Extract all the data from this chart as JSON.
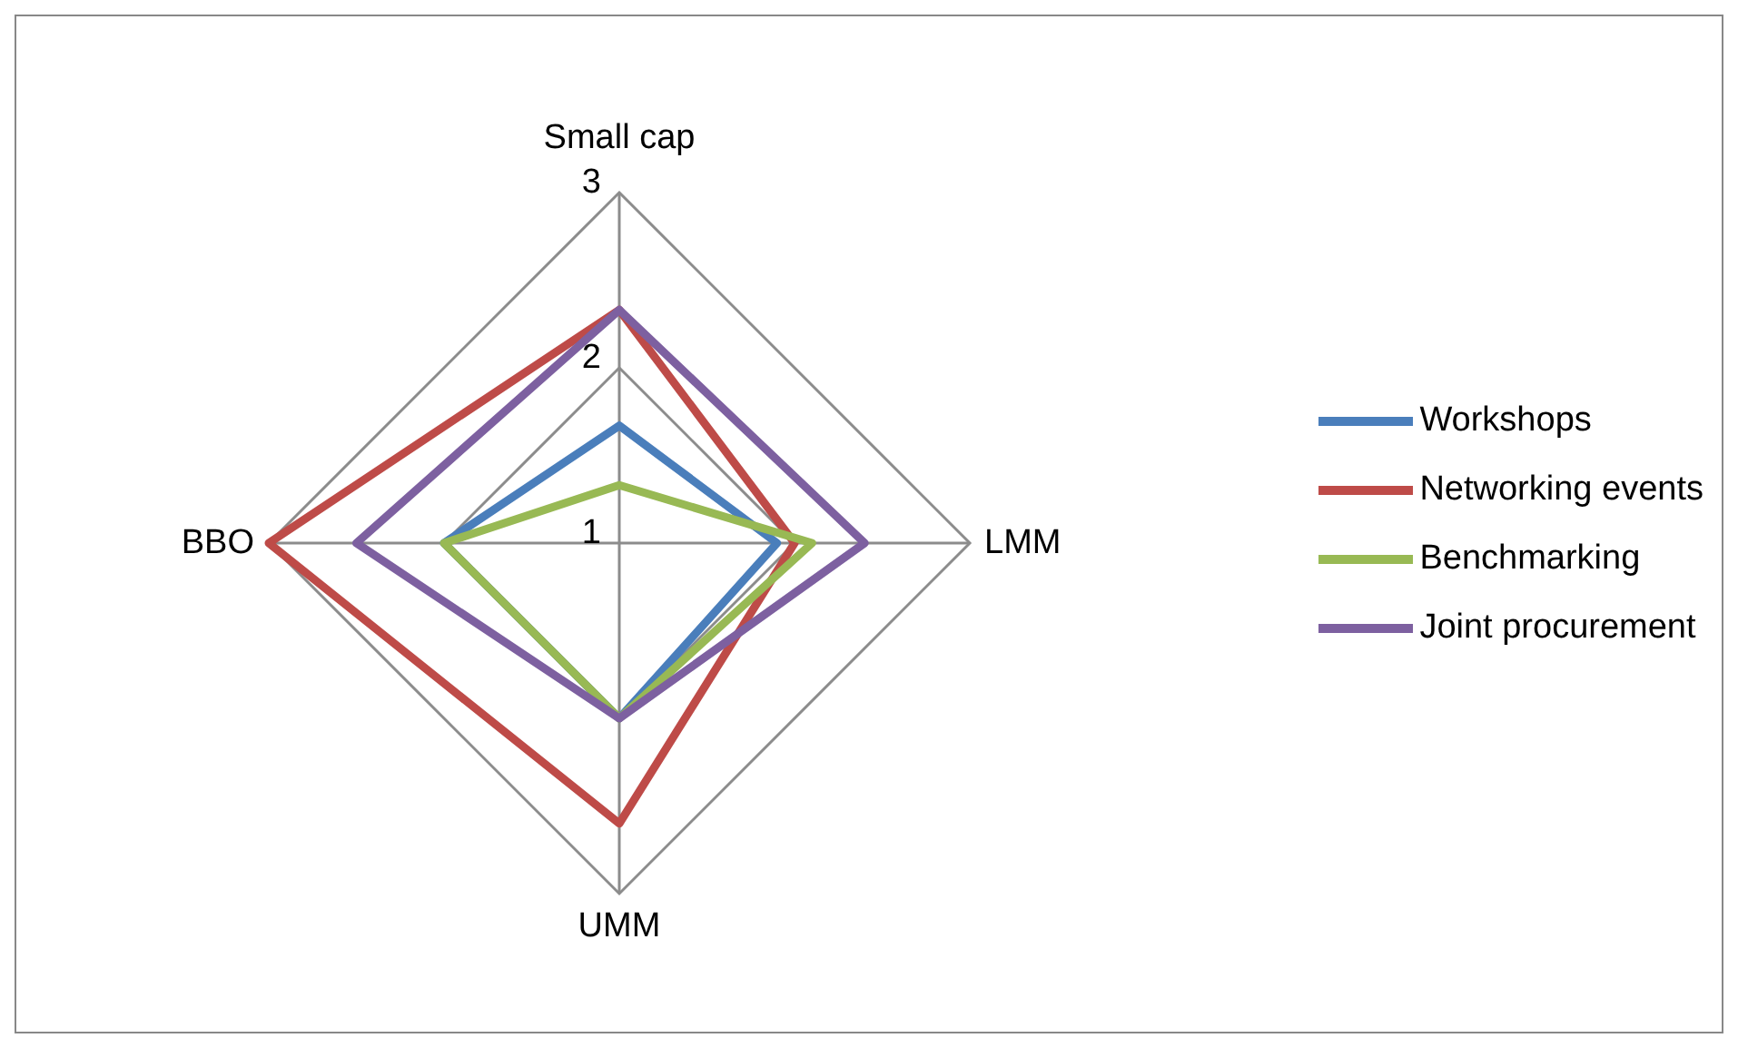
{
  "chart_data": {
    "type": "radar",
    "categories": [
      "Small cap",
      "LMM",
      "UMM",
      "BBO"
    ],
    "ylim": [
      1,
      3
    ],
    "yticks": [
      1,
      2,
      3
    ],
    "grid": true,
    "legend": "right",
    "marker": "none",
    "series": [
      {
        "name": "Workshops",
        "color": "#4a7ebb",
        "values": [
          1.67,
          1.9,
          2,
          2
        ]
      },
      {
        "name": "Networking events",
        "color": "#be4b48",
        "values": [
          2.33,
          2,
          2.6,
          3
        ]
      },
      {
        "name": "Benchmarking",
        "color": "#98b954",
        "values": [
          1.33,
          2.1,
          2,
          2
        ]
      },
      {
        "name": "Joint procurement",
        "color": "#7d60a0",
        "values": [
          2.33,
          2.4,
          2,
          2.5
        ]
      }
    ]
  }
}
